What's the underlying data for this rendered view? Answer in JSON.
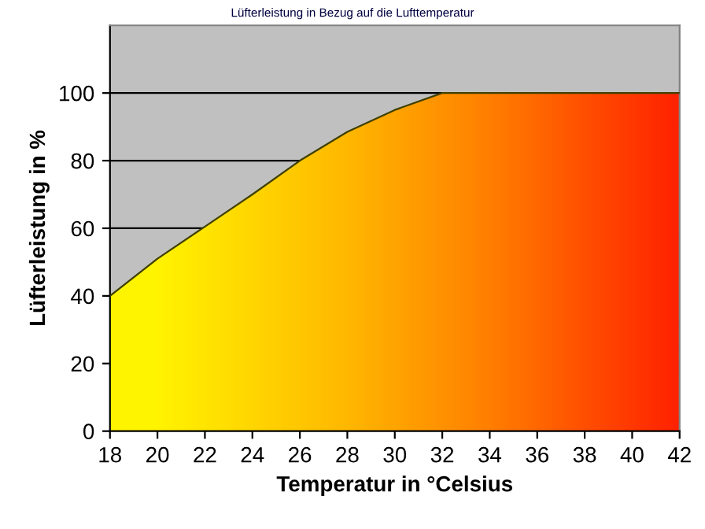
{
  "chart_data": {
    "type": "area",
    "title": "Lüfterleistung in Bezug auf die Lufttemperatur",
    "xlabel": "Temperatur in °Celsius",
    "ylabel": "Lüfterleistung in %",
    "x": [
      18,
      20,
      22,
      24,
      26,
      28,
      30,
      32,
      34,
      36,
      38,
      40,
      42
    ],
    "series": [
      {
        "color": "#404000",
        "colors": [
          "#ffff00",
          "#ffff00",
          "#ffee00",
          "#ffdd00",
          "#ffcc00",
          "#ffbb00",
          "#ffa500",
          "#ff9000",
          "#ff7a00",
          "#ff6000",
          "#ff4400",
          "#ff2a00",
          "#ff1000"
        ],
        "values": [
          40,
          51,
          60.5,
          70,
          80,
          88.5,
          95,
          100,
          100,
          100,
          100,
          100,
          100
        ]
      }
    ],
    "xlim": [
      18,
      42
    ],
    "xticks": [
      18,
      20,
      22,
      24,
      26,
      28,
      30,
      32,
      34,
      36,
      38,
      40,
      42
    ],
    "ylim": [
      0,
      120
    ],
    "yticks": [
      0,
      20,
      40,
      60,
      80,
      100
    ],
    "grid": "y",
    "legend": false
  }
}
